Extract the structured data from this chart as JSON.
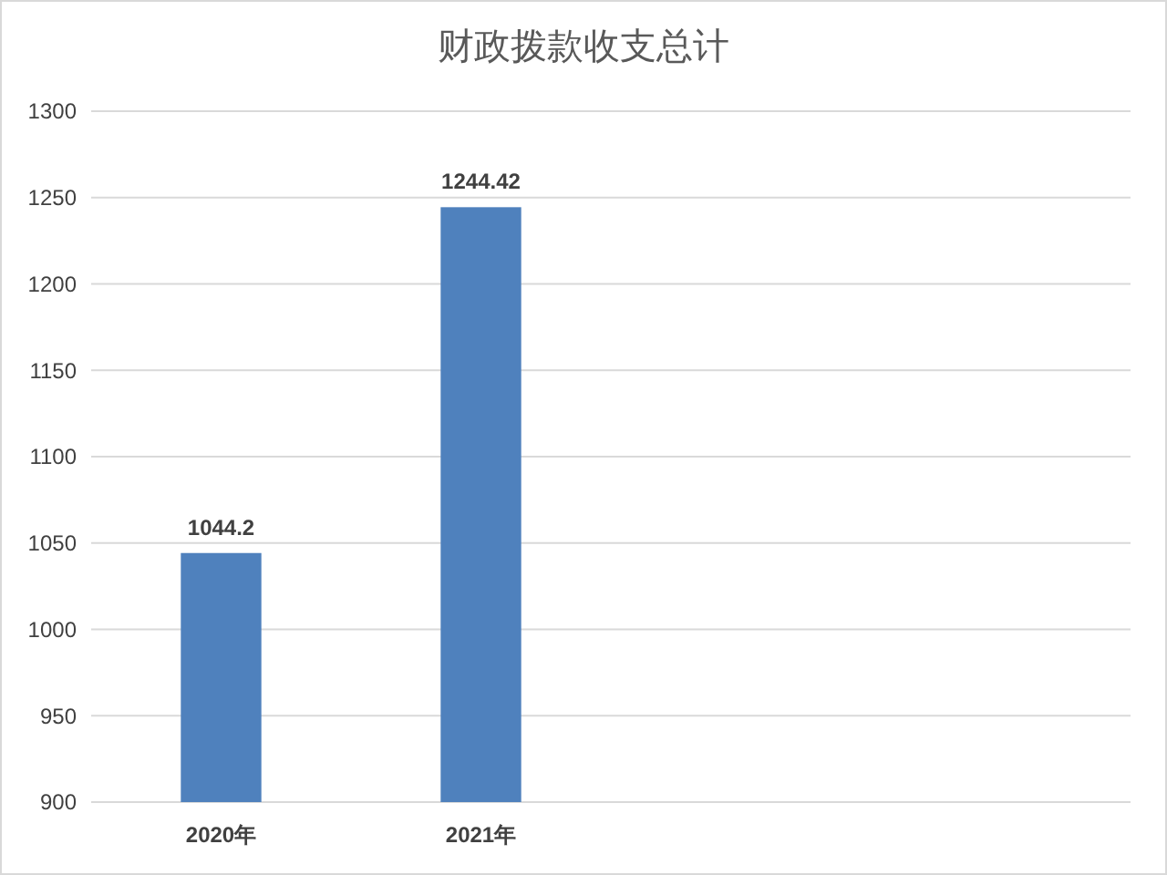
{
  "chart_data": {
    "type": "bar",
    "title": "财政拨款收支总计",
    "categories": [
      "2020年",
      "2021年",
      null,
      null
    ],
    "values": [
      1044.2,
      1244.42,
      null,
      null
    ],
    "color": "#4f81bd",
    "ylim": [
      900,
      1300
    ],
    "yticks": [
      900,
      950,
      1000,
      1050,
      1100,
      1150,
      1200,
      1250,
      1300
    ],
    "grid": "y",
    "data_labels": true
  }
}
